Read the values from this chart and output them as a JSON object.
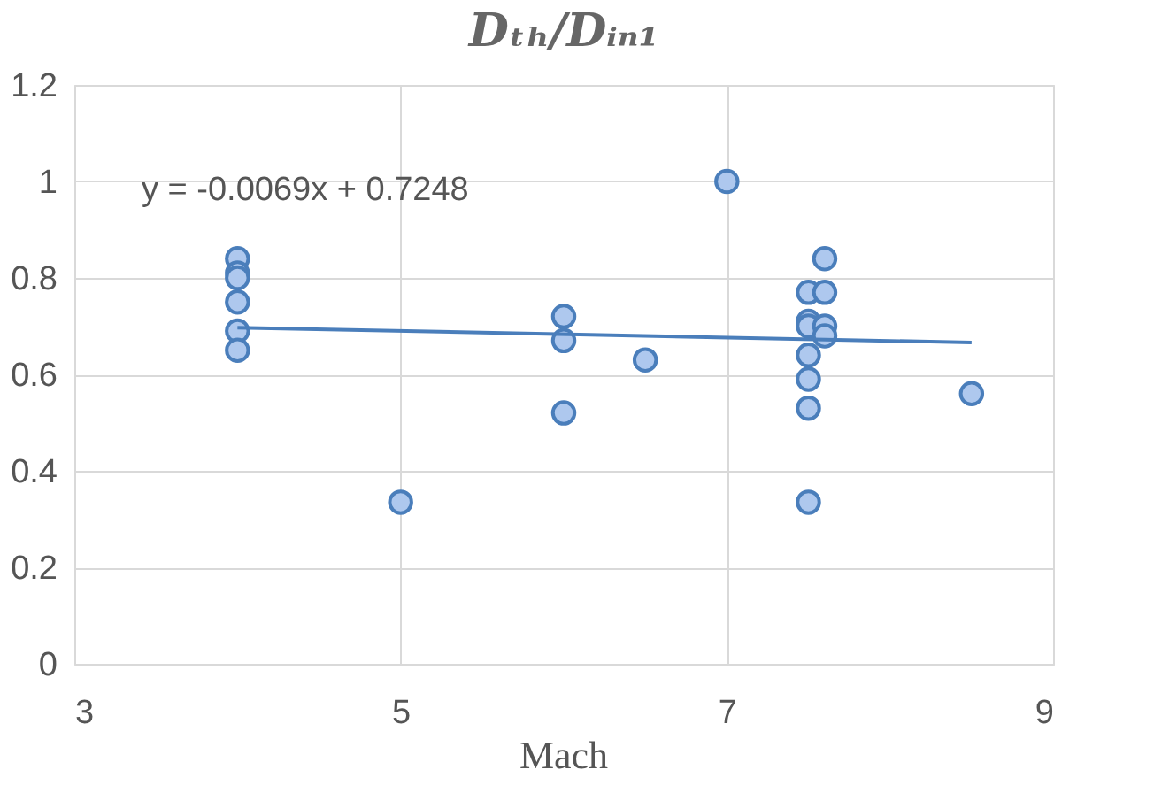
{
  "chart_data": {
    "type": "scatter",
    "title": "Dₜₕ/Dᵢₙ₁",
    "xlabel": "Mach",
    "xlim": [
      3,
      9
    ],
    "xticks": [
      3,
      5,
      7,
      9
    ],
    "ylim": [
      0,
      1.2
    ],
    "yticks": [
      0,
      0.2,
      0.4,
      0.6,
      0.8,
      1,
      1.2
    ],
    "grid": true,
    "marker": "circle",
    "annotations": [
      "y = -0.0069x + 0.7248"
    ],
    "series": [
      {
        "color": "#4a7ebb",
        "x": [
          4,
          4,
          4,
          4,
          4,
          4,
          5,
          6,
          6,
          6,
          6.5,
          7,
          7.5,
          7.5,
          7.5,
          7.5,
          7.5,
          7.5,
          7.5,
          7.6,
          7.6,
          7.6,
          7.6,
          8.5
        ],
        "values": [
          0.84,
          0.81,
          0.8,
          0.75,
          0.69,
          0.65,
          0.335,
          0.72,
          0.67,
          0.52,
          0.63,
          1.0,
          0.77,
          0.71,
          0.7,
          0.64,
          0.59,
          0.53,
          0.335,
          0.84,
          0.77,
          0.7,
          0.68,
          0.56
        ]
      },
      {
        "type": "line",
        "marker": "none",
        "color": "#4a7ebb",
        "x": [
          4,
          8.5
        ],
        "values": [
          0.697,
          0.666
        ]
      }
    ]
  }
}
